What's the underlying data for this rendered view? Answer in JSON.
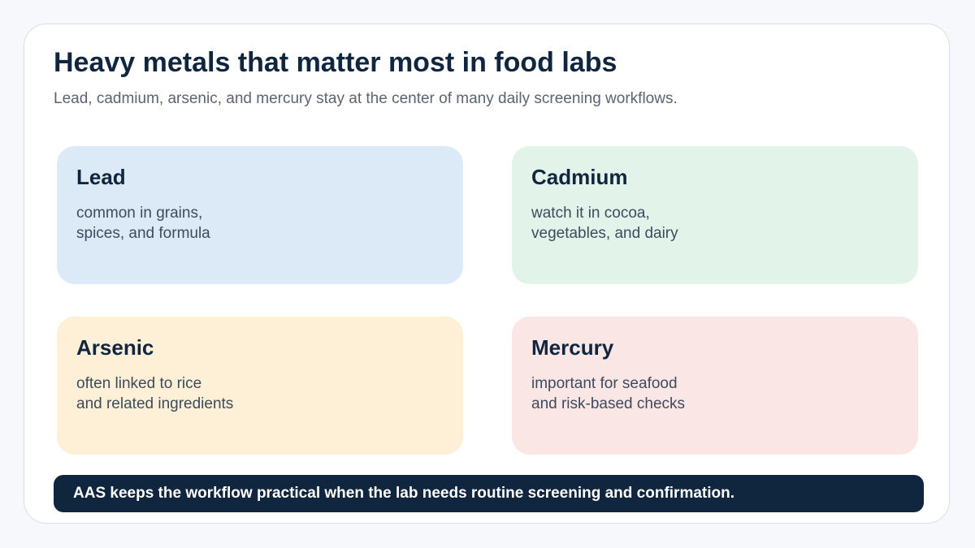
{
  "header": {
    "title": "Heavy metals that matter most in food labs",
    "subtitle": "Lead, cadmium, arsenic, and mercury stay at the center of many daily screening workflows."
  },
  "cards": [
    {
      "title": "Lead",
      "lines": [
        "common in grains,",
        "spices, and formula"
      ]
    },
    {
      "title": "Cadmium",
      "lines": [
        "watch it in cocoa,",
        "vegetables, and dairy"
      ]
    },
    {
      "title": "Arsenic",
      "lines": [
        "often linked to rice",
        "and related ingredients"
      ]
    },
    {
      "title": "Mercury",
      "lines": [
        "important for seafood",
        "and risk-based checks"
      ]
    }
  ],
  "footer": {
    "text": "AAS keeps the workflow practical when the lab needs routine screening and confirmation."
  }
}
